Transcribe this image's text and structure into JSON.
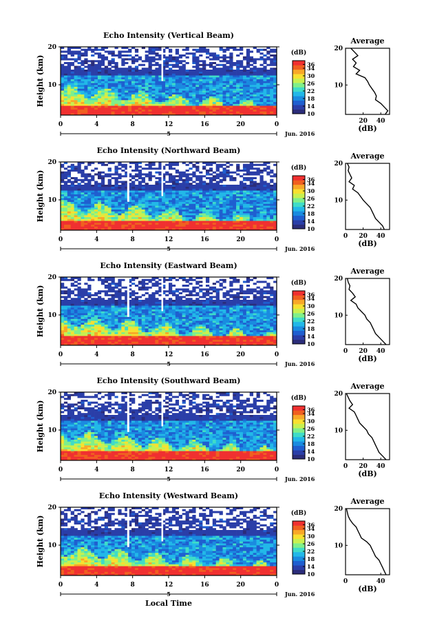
{
  "chart_data": {
    "type": "heatmap",
    "panels": [
      {
        "title": "Echo Intensity (Vertical Beam)",
        "avg": {
          "h": [
            20,
            19,
            18,
            17,
            16,
            15,
            14,
            13,
            12,
            11,
            10,
            9,
            8,
            7,
            6,
            5,
            4,
            3,
            2
          ],
          "db": [
            6,
            10,
            14,
            8,
            12,
            9,
            16,
            12,
            22,
            25,
            27,
            30,
            33,
            35,
            34,
            40,
            44,
            48,
            45
          ]
        },
        "avg_xticks": [
          "20",
          "40"
        ]
      },
      {
        "title": "Echo Intensity (Northward Beam)",
        "avg": {
          "h": [
            20,
            19,
            18,
            17,
            16,
            15,
            14,
            13,
            12,
            11,
            10,
            9,
            8,
            7,
            6,
            5,
            4,
            3,
            2
          ],
          "db": [
            2,
            4,
            3,
            5,
            7,
            4,
            10,
            8,
            14,
            17,
            20,
            24,
            28,
            30,
            32,
            34,
            38,
            42,
            44
          ]
        },
        "avg_xticks": [
          "0",
          "20",
          "40"
        ]
      },
      {
        "title": "Echo Intensity (Eastward Beam)",
        "avg": {
          "h": [
            20,
            19,
            18,
            17,
            16,
            15,
            14,
            13,
            12,
            11,
            10,
            9,
            8,
            7,
            6,
            5,
            4,
            3,
            2
          ],
          "db": [
            2,
            3,
            5,
            4,
            8,
            11,
            6,
            12,
            14,
            18,
            22,
            24,
            28,
            30,
            32,
            34,
            38,
            42,
            46
          ]
        },
        "avg_xticks": [
          "0",
          "20",
          "40"
        ]
      },
      {
        "title": "Echo Intensity (Southward Beam)",
        "avg": {
          "h": [
            20,
            19,
            18,
            17,
            16,
            15,
            14,
            13,
            12,
            11,
            10,
            9,
            8,
            7,
            6,
            5,
            4,
            3,
            2
          ],
          "db": [
            1,
            3,
            5,
            8,
            4,
            10,
            12,
            14,
            16,
            20,
            24,
            26,
            30,
            32,
            34,
            36,
            38,
            42,
            46
          ]
        },
        "avg_xticks": [
          "0",
          "20",
          "40"
        ]
      },
      {
        "title": "Echo Intensity (Westward Beam)",
        "avg": {
          "h": [
            20,
            19,
            18,
            17,
            16,
            15,
            14,
            13,
            12,
            11,
            10,
            9,
            8,
            7,
            6,
            5,
            4,
            3,
            2
          ],
          "db": [
            1,
            2,
            3,
            5,
            8,
            12,
            14,
            16,
            18,
            24,
            28,
            30,
            32,
            34,
            38,
            40,
            42,
            44,
            46
          ]
        },
        "avg_xticks": [
          "0",
          "40"
        ]
      }
    ],
    "xticks": [
      "0",
      "4",
      "8",
      "12",
      "16",
      "20",
      "0"
    ],
    "xlim": [
      0,
      24
    ],
    "ylim": [
      2,
      20
    ],
    "yticks": [
      "20",
      "10"
    ],
    "ylabel": "Height (km)",
    "date_label": "5",
    "month_label": "Jun. 2016",
    "colorbar_unit": "(dB)",
    "colorbar_ticks": [
      "36",
      "34",
      "30",
      "26",
      "22",
      "18",
      "14",
      "10"
    ],
    "colorbar_range": [
      10,
      38
    ],
    "avg_title": "Average",
    "avg_xlabel": "(dB)",
    "avg_xlim": [
      0,
      50
    ],
    "xlabel": "Local Time",
    "colormap": [
      "#2b2d7a",
      "#2a3ea8",
      "#1f5fd0",
      "#1a8be0",
      "#22b8e8",
      "#3fdcc8",
      "#7fef8a",
      "#c8f050",
      "#f8e030",
      "#f8a828",
      "#f06020",
      "#f03030"
    ]
  }
}
